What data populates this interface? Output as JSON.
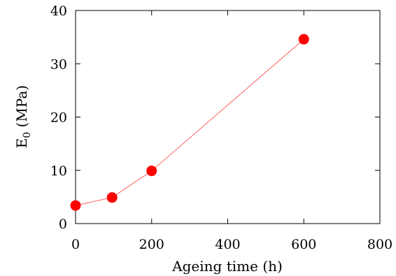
{
  "chart_data": {
    "type": "line",
    "title": "",
    "xlabel": "Ageing time (h)",
    "ylabel": {
      "main": "E",
      "sub": "0",
      "rest": " (MPa)"
    },
    "xlim": [
      0,
      800
    ],
    "ylim": [
      0,
      40
    ],
    "xticks": [
      0,
      200,
      400,
      600,
      800
    ],
    "yticks": [
      0,
      10,
      20,
      30,
      40
    ],
    "grid": false,
    "series": [
      {
        "x": [
          0,
          96,
          200,
          600
        ],
        "y": [
          3.4,
          4.9,
          9.9,
          34.6
        ],
        "color": "#ff0000",
        "line_color": "#ff6060",
        "marker": "circle"
      }
    ]
  }
}
